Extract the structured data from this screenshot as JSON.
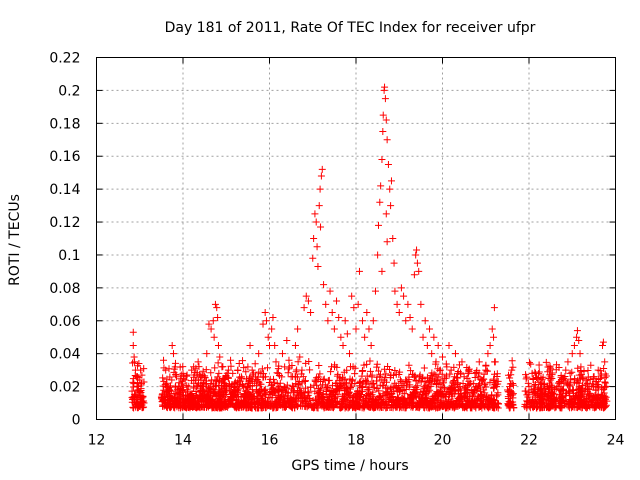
{
  "chart_data": {
    "type": "scatter",
    "title": "Day 181 of 2011, Rate Of TEC Index for receiver ufpr",
    "xlabel": "GPS time / hours",
    "ylabel": "ROTI / TECUs",
    "xlim": [
      12,
      24
    ],
    "ylim": [
      0,
      0.22
    ],
    "x_ticks": [
      12,
      14,
      16,
      18,
      20,
      22,
      24
    ],
    "x_tick_labels": [
      "12",
      "14",
      "16",
      "18",
      "20",
      "22",
      "24"
    ],
    "y_ticks": [
      0,
      0.02,
      0.04,
      0.06,
      0.08,
      0.1,
      0.12,
      0.14,
      0.16,
      0.18,
      0.2,
      0.22
    ],
    "y_tick_labels": [
      "0",
      "0.02",
      "0.04",
      "0.06",
      "0.08",
      "0.1",
      "0.12",
      "0.14",
      "0.16",
      "0.18",
      "0.2",
      "0.22"
    ],
    "grid": true,
    "marker": "+",
    "color": "#ff0000",
    "series": [
      {
        "name": "ROTI",
        "points": [
          [
            12.85,
            0.053
          ],
          [
            12.85,
            0.045
          ],
          [
            12.87,
            0.038
          ],
          [
            12.88,
            0.035
          ],
          [
            12.9,
            0.03
          ],
          [
            12.92,
            0.026
          ],
          [
            12.95,
            0.022
          ],
          [
            12.97,
            0.02
          ],
          [
            12.9,
            0.015
          ],
          [
            12.88,
            0.012
          ],
          [
            12.92,
            0.01
          ],
          [
            13.0,
            0.024
          ],
          [
            13.02,
            0.03
          ],
          [
            13.05,
            0.027
          ],
          [
            13.0,
            0.017
          ],
          [
            13.05,
            0.013
          ],
          [
            12.95,
            0.008
          ],
          [
            12.98,
            0.034
          ],
          [
            13.03,
            0.021
          ],
          [
            13.55,
            0.036
          ],
          [
            13.6,
            0.03
          ],
          [
            13.62,
            0.022
          ],
          [
            13.65,
            0.018
          ],
          [
            13.58,
            0.014
          ],
          [
            13.7,
            0.012
          ],
          [
            13.75,
            0.045
          ],
          [
            13.78,
            0.04
          ],
          [
            13.82,
            0.032
          ],
          [
            13.85,
            0.026
          ],
          [
            13.9,
            0.02
          ],
          [
            13.95,
            0.015
          ],
          [
            14.0,
            0.028
          ],
          [
            14.05,
            0.024
          ],
          [
            14.1,
            0.018
          ],
          [
            14.15,
            0.012
          ],
          [
            14.2,
            0.03
          ],
          [
            14.25,
            0.022
          ],
          [
            14.3,
            0.017
          ],
          [
            14.35,
            0.035
          ],
          [
            14.4,
            0.026
          ],
          [
            14.45,
            0.02
          ],
          [
            14.5,
            0.014
          ],
          [
            14.55,
            0.04
          ],
          [
            14.6,
            0.058
          ],
          [
            14.65,
            0.055
          ],
          [
            14.7,
            0.06
          ],
          [
            14.75,
            0.07
          ],
          [
            14.78,
            0.068
          ],
          [
            14.8,
            0.062
          ],
          [
            14.72,
            0.05
          ],
          [
            14.82,
            0.045
          ],
          [
            14.85,
            0.038
          ],
          [
            14.9,
            0.032
          ],
          [
            14.95,
            0.025
          ],
          [
            15.0,
            0.02
          ],
          [
            15.05,
            0.03
          ],
          [
            15.1,
            0.036
          ],
          [
            15.15,
            0.028
          ],
          [
            15.2,
            0.022
          ],
          [
            15.25,
            0.018
          ],
          [
            15.3,
            0.034
          ],
          [
            15.35,
            0.026
          ],
          [
            15.4,
            0.02
          ],
          [
            15.45,
            0.015
          ],
          [
            15.5,
            0.032
          ],
          [
            15.55,
            0.045
          ],
          [
            15.6,
            0.03
          ],
          [
            15.65,
            0.022
          ],
          [
            15.7,
            0.018
          ],
          [
            15.75,
            0.04
          ],
          [
            15.8,
            0.028
          ],
          [
            15.85,
            0.058
          ],
          [
            15.9,
            0.065
          ],
          [
            15.93,
            0.06
          ],
          [
            15.97,
            0.05
          ],
          [
            16.0,
            0.045
          ],
          [
            16.05,
            0.055
          ],
          [
            16.08,
            0.062
          ],
          [
            16.12,
            0.045
          ],
          [
            16.15,
            0.035
          ],
          [
            16.2,
            0.028
          ],
          [
            16.25,
            0.022
          ],
          [
            16.3,
            0.04
          ],
          [
            16.35,
            0.032
          ],
          [
            16.4,
            0.048
          ],
          [
            16.45,
            0.036
          ],
          [
            16.5,
            0.026
          ],
          [
            16.55,
            0.02
          ],
          [
            16.6,
            0.045
          ],
          [
            16.65,
            0.055
          ],
          [
            16.7,
            0.038
          ],
          [
            16.75,
            0.03
          ],
          [
            16.8,
            0.068
          ],
          [
            16.85,
            0.075
          ],
          [
            16.9,
            0.072
          ],
          [
            16.95,
            0.065
          ],
          [
            17.0,
            0.098
          ],
          [
            17.02,
            0.11
          ],
          [
            17.05,
            0.125
          ],
          [
            17.08,
            0.12
          ],
          [
            17.1,
            0.105
          ],
          [
            17.12,
            0.093
          ],
          [
            17.15,
            0.13
          ],
          [
            17.17,
            0.14
          ],
          [
            17.2,
            0.148
          ],
          [
            17.22,
            0.152
          ],
          [
            17.18,
            0.117
          ],
          [
            17.25,
            0.082
          ],
          [
            17.3,
            0.07
          ],
          [
            17.35,
            0.06
          ],
          [
            17.4,
            0.078
          ],
          [
            17.45,
            0.065
          ],
          [
            17.5,
            0.055
          ],
          [
            17.55,
            0.072
          ],
          [
            17.6,
            0.062
          ],
          [
            17.65,
            0.05
          ],
          [
            17.7,
            0.045
          ],
          [
            17.75,
            0.06
          ],
          [
            17.8,
            0.052
          ],
          [
            17.85,
            0.04
          ],
          [
            17.9,
            0.075
          ],
          [
            17.95,
            0.068
          ],
          [
            18.0,
            0.055
          ],
          [
            18.05,
            0.07
          ],
          [
            18.08,
            0.09
          ],
          [
            18.15,
            0.06
          ],
          [
            18.2,
            0.05
          ],
          [
            18.25,
            0.065
          ],
          [
            18.3,
            0.055
          ],
          [
            18.35,
            0.045
          ],
          [
            18.4,
            0.06
          ],
          [
            18.45,
            0.078
          ],
          [
            18.5,
            0.1
          ],
          [
            18.52,
            0.118
          ],
          [
            18.55,
            0.132
          ],
          [
            18.57,
            0.142
          ],
          [
            18.6,
            0.158
          ],
          [
            18.62,
            0.175
          ],
          [
            18.63,
            0.185
          ],
          [
            18.65,
            0.2
          ],
          [
            18.66,
            0.202
          ],
          [
            18.68,
            0.195
          ],
          [
            18.7,
            0.182
          ],
          [
            18.72,
            0.17
          ],
          [
            18.75,
            0.155
          ],
          [
            18.78,
            0.14
          ],
          [
            18.8,
            0.13
          ],
          [
            18.82,
            0.145
          ],
          [
            18.85,
            0.11
          ],
          [
            18.88,
            0.095
          ],
          [
            18.7,
            0.125
          ],
          [
            18.72,
            0.108
          ],
          [
            18.6,
            0.09
          ],
          [
            18.9,
            0.078
          ],
          [
            18.95,
            0.07
          ],
          [
            19.0,
            0.065
          ],
          [
            19.05,
            0.08
          ],
          [
            19.1,
            0.075
          ],
          [
            19.15,
            0.06
          ],
          [
            19.2,
            0.07
          ],
          [
            19.25,
            0.062
          ],
          [
            19.3,
            0.055
          ],
          [
            19.35,
            0.088
          ],
          [
            19.38,
            0.1
          ],
          [
            19.4,
            0.103
          ],
          [
            19.42,
            0.095
          ],
          [
            19.45,
            0.09
          ],
          [
            19.5,
            0.07
          ],
          [
            19.55,
            0.05
          ],
          [
            19.6,
            0.06
          ],
          [
            19.65,
            0.045
          ],
          [
            19.7,
            0.055
          ],
          [
            19.75,
            0.04
          ],
          [
            19.8,
            0.05
          ],
          [
            19.85,
            0.035
          ],
          [
            19.9,
            0.045
          ],
          [
            19.95,
            0.03
          ],
          [
            20.0,
            0.038
          ],
          [
            20.05,
            0.025
          ],
          [
            20.1,
            0.032
          ],
          [
            20.15,
            0.045
          ],
          [
            20.2,
            0.03
          ],
          [
            20.25,
            0.022
          ],
          [
            20.3,
            0.04
          ],
          [
            20.35,
            0.028
          ],
          [
            20.4,
            0.02
          ],
          [
            20.45,
            0.035
          ],
          [
            20.5,
            0.026
          ],
          [
            20.55,
            0.018
          ],
          [
            20.6,
            0.03
          ],
          [
            20.65,
            0.022
          ],
          [
            20.7,
            0.015
          ],
          [
            20.75,
            0.028
          ],
          [
            20.8,
            0.02
          ],
          [
            20.85,
            0.035
          ],
          [
            20.9,
            0.024
          ],
          [
            20.95,
            0.018
          ],
          [
            21.0,
            0.03
          ],
          [
            21.05,
            0.04
          ],
          [
            21.1,
            0.045
          ],
          [
            21.15,
            0.055
          ],
          [
            21.18,
            0.05
          ],
          [
            21.2,
            0.068
          ],
          [
            21.22,
            0.035
          ],
          [
            21.25,
            0.02
          ],
          [
            21.28,
            0.015
          ],
          [
            21.55,
            0.02
          ],
          [
            21.6,
            0.03
          ],
          [
            21.62,
            0.015
          ],
          [
            21.58,
            0.01
          ],
          [
            21.95,
            0.015
          ],
          [
            22.0,
            0.02
          ],
          [
            22.05,
            0.018
          ],
          [
            22.1,
            0.025
          ],
          [
            22.15,
            0.028
          ],
          [
            22.2,
            0.018
          ],
          [
            22.25,
            0.012
          ],
          [
            22.3,
            0.022
          ],
          [
            22.35,
            0.015
          ],
          [
            22.4,
            0.01
          ],
          [
            22.45,
            0.018
          ],
          [
            22.5,
            0.024
          ],
          [
            22.55,
            0.016
          ],
          [
            22.6,
            0.012
          ],
          [
            22.65,
            0.02
          ],
          [
            22.7,
            0.015
          ],
          [
            22.75,
            0.01
          ],
          [
            22.8,
            0.025
          ],
          [
            22.85,
            0.03
          ],
          [
            22.9,
            0.035
          ],
          [
            22.95,
            0.028
          ],
          [
            23.0,
            0.04
          ],
          [
            23.05,
            0.045
          ],
          [
            23.1,
            0.05
          ],
          [
            23.12,
            0.054
          ],
          [
            23.15,
            0.048
          ],
          [
            23.18,
            0.04
          ],
          [
            23.2,
            0.032
          ],
          [
            23.25,
            0.025
          ],
          [
            23.3,
            0.018
          ],
          [
            23.35,
            0.022
          ],
          [
            23.4,
            0.015
          ],
          [
            23.45,
            0.02
          ],
          [
            23.5,
            0.025
          ],
          [
            23.55,
            0.018
          ],
          [
            23.6,
            0.03
          ],
          [
            23.65,
            0.025
          ],
          [
            23.7,
            0.045
          ],
          [
            23.72,
            0.047
          ],
          [
            23.75,
            0.035
          ],
          [
            23.68,
            0.015
          ]
        ]
      }
    ]
  }
}
